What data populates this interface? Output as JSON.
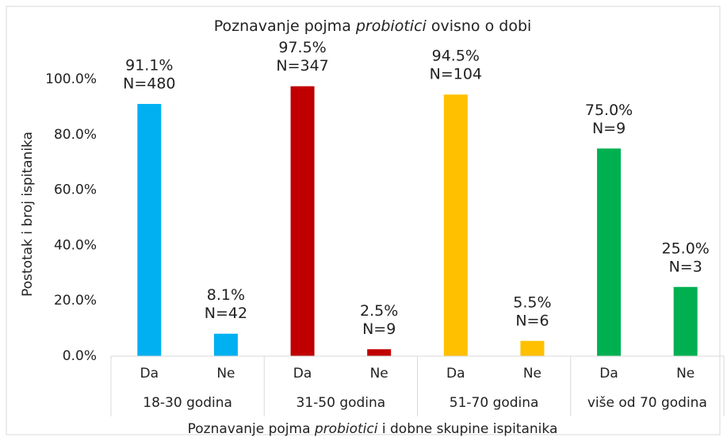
{
  "chart_data": {
    "type": "bar",
    "title": [
      "Poznavanje pojma ",
      "probiotici",
      " ovisno o dobi"
    ],
    "xlabel": [
      "Poznavanje pojma ",
      "probiotici",
      " i dobne skupine ispitanika"
    ],
    "ylabel": "Postotak i broj ispitanika",
    "groups": [
      "18-30 godina",
      "31-50 godina",
      "51-70 godina",
      "više od 70 godina"
    ],
    "categories": [
      "Da",
      "Ne",
      "Da",
      "Ne",
      "Da",
      "Ne",
      "Da",
      "Ne"
    ],
    "values": [
      91.1,
      8.1,
      97.5,
      2.5,
      94.5,
      5.5,
      75.0,
      25.0
    ],
    "value_labels": [
      "91.1%",
      "8.1%",
      "97.5%",
      "2.5%",
      "94.5%",
      "5.5%",
      "75.0%",
      "25.0%"
    ],
    "count_labels": [
      "N=480",
      "N=42",
      "N=347",
      "N=9",
      "N=104",
      "N=6",
      "N=9",
      "N=3"
    ],
    "colors": [
      "#00b0f0",
      "#00b0f0",
      "#c00000",
      "#c00000",
      "#ffc000",
      "#ffc000",
      "#00b050",
      "#00b050"
    ],
    "ylim": [
      0,
      100
    ],
    "yticks": [
      {
        "value": 0,
        "label": "0.0%"
      },
      {
        "value": 20,
        "label": "20.0%"
      },
      {
        "value": 40,
        "label": "40.0%"
      },
      {
        "value": 60,
        "label": "60.0%"
      },
      {
        "value": 80,
        "label": "80.0%"
      },
      {
        "value": 100,
        "label": "100.0%"
      }
    ],
    "grid": false
  }
}
